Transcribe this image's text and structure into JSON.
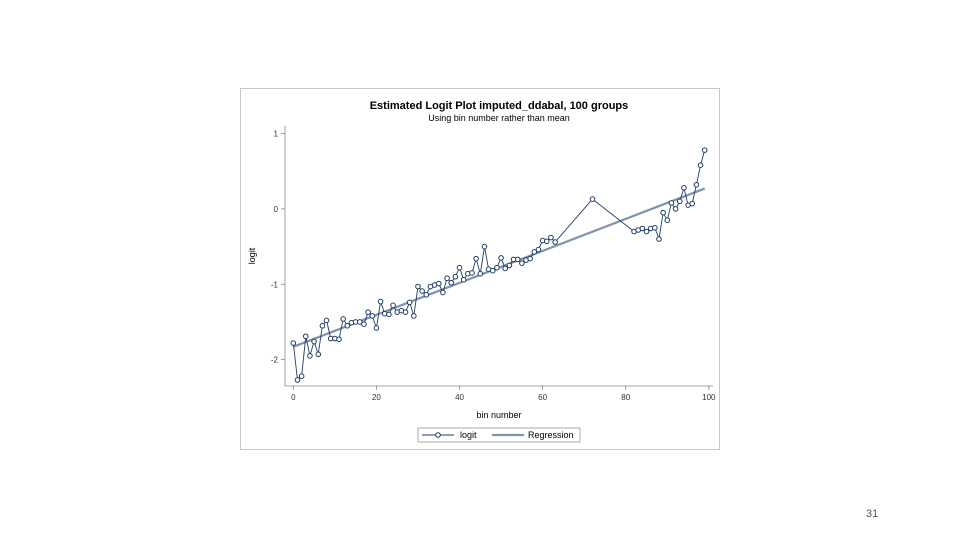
{
  "slide": {
    "page_number": "31"
  },
  "chart_data": {
    "type": "line",
    "title": "Estimated Logit Plot imputed_ddabal, 100 groups",
    "subtitle": "Using bin number rather than mean",
    "xlabel": "bin number",
    "ylabel": "logit",
    "xlim": [
      -2,
      101
    ],
    "ylim": [
      -2.35,
      1.1
    ],
    "x_ticks": [
      0,
      20,
      40,
      60,
      80,
      100
    ],
    "y_ticks": [
      -2,
      -1,
      0,
      1
    ],
    "x_tick_labels": [
      "0",
      "20",
      "40",
      "60",
      "80",
      "100"
    ],
    "y_tick_labels": [
      "-2",
      "-1",
      "0",
      "1"
    ],
    "grid": false,
    "legend_position": "bottom",
    "colors": {
      "logit": "#1f3d66",
      "regression": "#7f93ad",
      "axis": "#888888"
    },
    "series": [
      {
        "name": "logit",
        "style": "line-marker",
        "x": [
          0,
          1,
          2,
          3,
          4,
          5,
          6,
          7,
          8,
          9,
          10,
          11,
          12,
          13,
          14,
          15,
          16,
          17,
          18,
          19,
          20,
          21,
          22,
          23,
          24,
          25,
          26,
          27,
          28,
          29,
          30,
          31,
          32,
          33,
          34,
          35,
          36,
          37,
          38,
          39,
          40,
          41,
          42,
          43,
          44,
          45,
          46,
          47,
          48,
          49,
          50,
          51,
          52,
          53,
          54,
          55,
          56,
          57,
          58,
          59,
          60,
          61,
          62,
          63,
          72,
          82,
          83,
          84,
          85,
          86,
          87,
          88,
          89,
          90,
          91,
          92,
          93,
          94,
          95,
          96,
          97,
          98,
          99
        ],
        "y": [
          -1.78,
          -2.27,
          -2.22,
          -1.69,
          -1.95,
          -1.76,
          -1.93,
          -1.55,
          -1.48,
          -1.72,
          -1.72,
          -1.73,
          -1.46,
          -1.55,
          -1.51,
          -1.5,
          -1.5,
          -1.53,
          -1.37,
          -1.42,
          -1.58,
          -1.23,
          -1.39,
          -1.4,
          -1.28,
          -1.37,
          -1.35,
          -1.37,
          -1.24,
          -1.42,
          -1.03,
          -1.09,
          -1.14,
          -1.03,
          -1.01,
          -0.99,
          -1.11,
          -0.92,
          -0.98,
          -0.9,
          -0.78,
          -0.94,
          -0.86,
          -0.85,
          -0.66,
          -0.86,
          -0.5,
          -0.8,
          -0.82,
          -0.78,
          -0.65,
          -0.79,
          -0.75,
          -0.67,
          -0.67,
          -0.72,
          -0.68,
          -0.66,
          -0.57,
          -0.54,
          -0.42,
          -0.43,
          -0.38,
          -0.44,
          0.13,
          -0.3,
          -0.28,
          -0.26,
          -0.3,
          -0.26,
          -0.25,
          -0.4,
          -0.05,
          -0.15,
          0.08,
          0.0,
          0.1,
          0.28,
          0.05,
          0.07,
          0.32,
          0.58,
          0.78
        ]
      },
      {
        "name": "Regression",
        "style": "line",
        "x": [
          0,
          99
        ],
        "y": [
          -1.83,
          0.27
        ]
      }
    ]
  }
}
